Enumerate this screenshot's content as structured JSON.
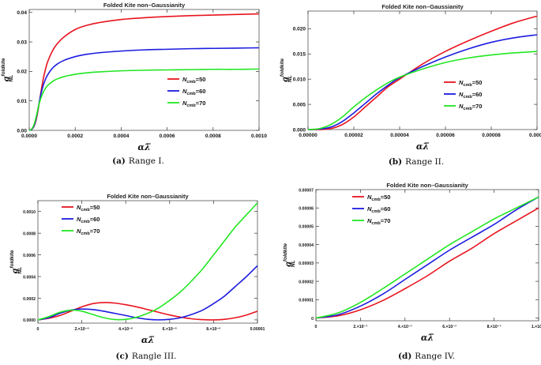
{
  "chart_data": [
    {
      "id": "a",
      "type": "line",
      "title": "Folded Kite non–Gaussianity",
      "xlabel": "αλ̅",
      "ylabel_main": "g",
      "ylabel_sup": "foldkite",
      "ylabel_sub": "NL",
      "xlim": [
        0,
        0.001
      ],
      "ylim": [
        0,
        0.041
      ],
      "xticks": [
        0,
        0.0002,
        0.0004,
        0.0006,
        0.0008,
        0.001
      ],
      "xtick_labels": [
        "0.0000",
        "0.0002",
        "0.0004",
        "0.0006",
        "0.0008",
        "0.0010"
      ],
      "yticks": [
        0,
        0.01,
        0.02,
        0.03,
        0.04
      ],
      "ytick_labels": [
        "0.00",
        "0.01",
        "0.02",
        "0.03",
        "0.04"
      ],
      "legend": "right",
      "caption_letter": "(a)",
      "caption_text": "Range I.",
      "series": [
        {
          "name": "N",
          "sub": "cmb",
          "value_label": "=50",
          "color": "#e8141e",
          "x": [
            0,
            1e-05,
            2e-05,
            3e-05,
            4e-05,
            5e-05,
            6e-05,
            7e-05,
            8e-05,
            0.0001,
            0.00012,
            0.00015,
            0.0002,
            0.00025,
            0.0003,
            0.0004,
            0.0005,
            0.0006,
            0.0007,
            0.0008,
            0.0009,
            0.001
          ],
          "y": [
            0,
            0.0003,
            0.0012,
            0.0035,
            0.0075,
            0.0125,
            0.017,
            0.0205,
            0.0232,
            0.0268,
            0.0292,
            0.0316,
            0.0342,
            0.0356,
            0.0365,
            0.0376,
            0.0382,
            0.0386,
            0.0389,
            0.0391,
            0.0393,
            0.0395
          ]
        },
        {
          "name": "N",
          "sub": "cmb",
          "value_label": "=60",
          "color": "#1c1ce0",
          "x": [
            0,
            1e-05,
            2e-05,
            3e-05,
            4e-05,
            5e-05,
            6e-05,
            7e-05,
            8e-05,
            0.0001,
            0.00012,
            0.00015,
            0.0002,
            0.00025,
            0.0003,
            0.0004,
            0.0005,
            0.0006,
            0.0007,
            0.0008,
            0.0009,
            0.001
          ],
          "y": [
            0,
            0.0003,
            0.0014,
            0.004,
            0.008,
            0.012,
            0.015,
            0.0172,
            0.0188,
            0.021,
            0.0224,
            0.0237,
            0.025,
            0.0258,
            0.0263,
            0.0269,
            0.0273,
            0.0275,
            0.0277,
            0.0278,
            0.0279,
            0.028
          ]
        },
        {
          "name": "N",
          "sub": "cmb",
          "value_label": "=70",
          "color": "#22e622",
          "x": [
            0,
            1e-05,
            2e-05,
            3e-05,
            4e-05,
            5e-05,
            6e-05,
            7e-05,
            8e-05,
            0.0001,
            0.00012,
            0.00015,
            0.0002,
            0.00025,
            0.0003,
            0.0004,
            0.0005,
            0.0006,
            0.0007,
            0.0008,
            0.0009,
            0.001
          ],
          "y": [
            0,
            0.0004,
            0.0018,
            0.0045,
            0.008,
            0.0108,
            0.0128,
            0.0142,
            0.0152,
            0.0165,
            0.0174,
            0.0182,
            0.019,
            0.0195,
            0.0198,
            0.0202,
            0.0204,
            0.0205,
            0.0206,
            0.0207,
            0.0207,
            0.0208
          ]
        }
      ]
    },
    {
      "id": "b",
      "type": "line",
      "title": "Folded Kite non–Gaussianity",
      "xlabel": "αλ̅",
      "ylabel_main": "g",
      "ylabel_sup": "foldkite",
      "ylabel_sub": "NL",
      "xlim": [
        0,
        0.0001
      ],
      "ylim": [
        0,
        0.0235
      ],
      "xticks": [
        0,
        2e-05,
        4e-05,
        6e-05,
        8e-05,
        0.0001
      ],
      "xtick_labels": [
        "0.00000",
        "0.00002",
        "0.00004",
        "0.00006",
        "0.00008",
        "0.0001"
      ],
      "yticks": [
        0,
        0.005,
        0.01,
        0.015,
        0.02
      ],
      "ytick_labels": [
        "0.000",
        "0.005",
        "0.010",
        "0.015",
        "0.020"
      ],
      "legend": "right",
      "caption_letter": "(b)",
      "caption_text": "Range II.",
      "series": [
        {
          "name": "N",
          "sub": "cmb",
          "value_label": "=50",
          "color": "#e8141e",
          "x": [
            0,
            5e-06,
            1e-05,
            1.5e-05,
            2e-05,
            2.5e-05,
            3e-05,
            3.5e-05,
            4e-05,
            5e-05,
            6e-05,
            7e-05,
            8e-05,
            9e-05,
            0.0001
          ],
          "y": [
            0,
            0,
            0.0002,
            0.001,
            0.0025,
            0.0045,
            0.0065,
            0.0085,
            0.01,
            0.013,
            0.0155,
            0.0176,
            0.0195,
            0.0212,
            0.0225
          ]
        },
        {
          "name": "N",
          "sub": "cmb",
          "value_label": "=60",
          "color": "#1c1ce0",
          "x": [
            0,
            5e-06,
            1e-05,
            1.5e-05,
            2e-05,
            2.5e-05,
            3e-05,
            3.5e-05,
            4e-05,
            5e-05,
            6e-05,
            7e-05,
            8e-05,
            9e-05,
            0.0001
          ],
          "y": [
            0,
            0.0001,
            0.0005,
            0.0016,
            0.0033,
            0.0052,
            0.0071,
            0.0088,
            0.0103,
            0.0125,
            0.0144,
            0.016,
            0.0173,
            0.0182,
            0.0188
          ]
        },
        {
          "name": "N",
          "sub": "cmb",
          "value_label": "=70",
          "color": "#22e622",
          "x": [
            0,
            5e-06,
            1e-05,
            1.5e-05,
            2e-05,
            2.5e-05,
            3e-05,
            3.5e-05,
            4e-05,
            5e-05,
            6e-05,
            7e-05,
            8e-05,
            9e-05,
            0.0001
          ],
          "y": [
            0,
            0.0002,
            0.001,
            0.0025,
            0.0045,
            0.0063,
            0.0079,
            0.0093,
            0.0104,
            0.012,
            0.0133,
            0.0142,
            0.0148,
            0.0152,
            0.0155
          ]
        }
      ]
    },
    {
      "id": "c",
      "type": "line",
      "title": "Folded Kite non–Gaussianity",
      "xlabel": "αλ̅",
      "ylabel_main": "g",
      "ylabel_sup": "foldkite",
      "ylabel_sub": "NL",
      "xlim": [
        0,
        1e-05
      ],
      "ylim": [
        -3e-05,
        0.0011
      ],
      "xticks": [
        0,
        2e-06,
        4e-06,
        6e-06,
        8e-06,
        1e-05
      ],
      "xtick_labels": [
        "0",
        "2.×10⁻⁶",
        "4.×10⁻⁶",
        "6.×10⁻⁶",
        "8.×10⁻⁶",
        "0.00001"
      ],
      "yticks": [
        0,
        0.0002,
        0.0004,
        0.0006,
        0.0008,
        0.001
      ],
      "ytick_labels": [
        "0.0000",
        "0.0002",
        "0.0004",
        "0.0006",
        "0.0008",
        "0.0010"
      ],
      "legend": "left",
      "caption_letter": "(c)",
      "caption_text": "Rangle III.",
      "series": [
        {
          "name": "N",
          "sub": "cmb",
          "value_label": "=50",
          "color": "#e8141e",
          "x": [
            0,
            5e-07,
            1e-06,
            1.5e-06,
            2e-06,
            2.5e-06,
            3e-06,
            3.5e-06,
            4e-06,
            4.5e-06,
            5e-06,
            5.5e-06,
            6e-06,
            6.5e-06,
            7e-06,
            7.5e-06,
            8e-06,
            8.5e-06,
            9e-06,
            9.5e-06,
            1e-05
          ],
          "y": [
            0,
            1.5e-05,
            4e-05,
            8e-05,
            0.00012,
            0.00015,
            0.00016,
            0.000155,
            0.00014,
            0.00012,
            9.5e-05,
            7e-05,
            4.5e-05,
            2.5e-05,
            1e-05,
            2e-06,
            0,
            5e-06,
            2e-05,
            4.5e-05,
            8e-05
          ]
        },
        {
          "name": "N",
          "sub": "cmb",
          "value_label": "=60",
          "color": "#1c1ce0",
          "x": [
            0,
            5e-07,
            1e-06,
            1.5e-06,
            2e-06,
            2.5e-06,
            3e-06,
            3.5e-06,
            4e-06,
            4.5e-06,
            5e-06,
            5.5e-06,
            6e-06,
            6.5e-06,
            7e-06,
            7.5e-06,
            8e-06,
            8.5e-06,
            9e-06,
            9.5e-06,
            1e-05
          ],
          "y": [
            0,
            2e-05,
            6e-05,
            9e-05,
            0.0001,
            9.5e-05,
            8e-05,
            6e-05,
            4e-05,
            2e-05,
            5e-06,
            0,
            5e-06,
            2e-05,
            5e-05,
            9e-05,
            0.00015,
            0.00022,
            0.00031,
            0.0004,
            0.0005
          ]
        },
        {
          "name": "N",
          "sub": "cmb",
          "value_label": "=70",
          "color": "#22e622",
          "x": [
            0,
            5e-07,
            1e-06,
            1.5e-06,
            2e-06,
            2.5e-06,
            3e-06,
            3.5e-06,
            4e-06,
            4.5e-06,
            5e-06,
            5.5e-06,
            6e-06,
            6.5e-06,
            7e-06,
            7.5e-06,
            8e-06,
            8.5e-06,
            9e-06,
            9.5e-06,
            1e-05
          ],
          "y": [
            0,
            3e-05,
            7e-05,
            9e-05,
            8e-05,
            5e-05,
            2e-05,
            3e-06,
            5e-06,
            2.5e-05,
            6e-05,
            0.00011,
            0.00018,
            0.00026,
            0.00036,
            0.00047,
            0.0006,
            0.00073,
            0.00086,
            0.00097,
            0.00108
          ]
        }
      ]
    },
    {
      "id": "d",
      "type": "line",
      "title": "Folded Kite non–Gaussianity",
      "xlabel": "αλ̅",
      "ylabel_main": "g",
      "ylabel_sup": "foldkite",
      "ylabel_sub": "NL",
      "xlim": [
        0,
        1e-06
      ],
      "ylim": [
        -1.5e-06,
        7e-05
      ],
      "xticks": [
        0,
        2e-07,
        4e-07,
        6e-07,
        8e-07,
        1e-06
      ],
      "xtick_labels": [
        "0",
        "2.×10⁻⁷",
        "4.×10⁻⁷",
        "6.×10⁻⁷",
        "8.×10⁻⁷",
        "1.×10⁻⁶"
      ],
      "yticks": [
        0,
        1e-05,
        2e-05,
        3e-05,
        4e-05,
        5e-05,
        6e-05,
        7e-05
      ],
      "ytick_labels": [
        "0",
        "0.00001",
        "0.00002",
        "0.00003",
        "0.00004",
        "0.00005",
        "0.00006",
        "0.00007"
      ],
      "legend": "left",
      "caption_letter": "(d)",
      "caption_text": "Range IV.",
      "series": [
        {
          "name": "N",
          "sub": "cmb",
          "value_label": "=50",
          "color": "#e8141e",
          "x": [
            0,
            1e-07,
            2e-07,
            3e-07,
            4e-07,
            5e-07,
            6e-07,
            7e-07,
            8e-07,
            9e-07,
            1e-06
          ],
          "y": [
            0,
            1.2e-06,
            4.5e-06,
            9.5e-06,
            1.6e-05,
            2.3e-05,
            3.1e-05,
            3.8e-05,
            4.6e-05,
            5.3e-05,
            6e-05
          ]
        },
        {
          "name": "N",
          "sub": "cmb",
          "value_label": "=60",
          "color": "#1c1ce0",
          "x": [
            0,
            1e-07,
            2e-07,
            3e-07,
            4e-07,
            5e-07,
            6e-07,
            7e-07,
            8e-07,
            9e-07,
            1e-06
          ],
          "y": [
            0,
            1.8e-06,
            6.5e-06,
            1.3e-05,
            2.1e-05,
            2.9e-05,
            3.7e-05,
            4.4e-05,
            5.1e-05,
            5.9e-05,
            6.6e-05
          ]
        },
        {
          "name": "N",
          "sub": "cmb",
          "value_label": "=70",
          "color": "#22e622",
          "x": [
            0,
            1e-07,
            2e-07,
            3e-07,
            4e-07,
            5e-07,
            6e-07,
            7e-07,
            8e-07,
            9e-07,
            1e-06
          ],
          "y": [
            0,
            2.8e-06,
            8.5e-06,
            1.6e-05,
            2.4e-05,
            3.2e-05,
            4e-05,
            4.7e-05,
            5.4e-05,
            6e-05,
            6.6e-05
          ]
        }
      ]
    }
  ]
}
